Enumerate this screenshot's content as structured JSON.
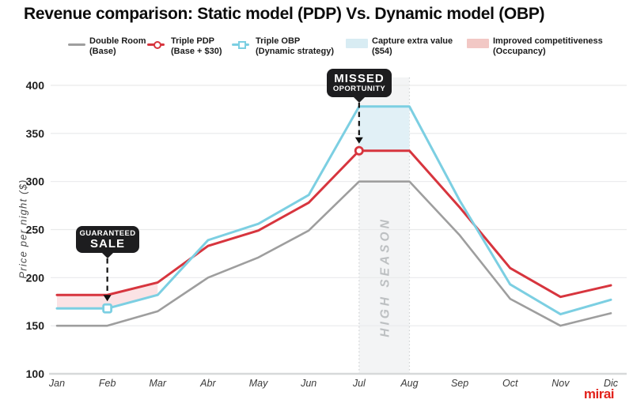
{
  "title": "Revenue comparison: Static model (PDP) Vs. Dynamic model (OBP)",
  "watermark": "mirai",
  "legend": {
    "items": [
      {
        "line1": "Double Room",
        "line2": "(Base)",
        "swatch": "line",
        "color": "#9e9e9e"
      },
      {
        "line1": "Triple PDP",
        "line2": "(Base + $30)",
        "swatch": "line-circle",
        "color": "#d7353e"
      },
      {
        "line1": "Triple OBP",
        "line2": "(Dynamic strategy)",
        "swatch": "line-square",
        "color": "#7ccfe2"
      },
      {
        "line1": "Capture extra value",
        "line2": "($54)",
        "swatch": "rect",
        "color": "#d8ecf3"
      },
      {
        "line1": "Improved competitiveness",
        "line2": "(Occupancy)",
        "swatch": "rect",
        "color": "#f2c8c5"
      }
    ]
  },
  "chart_data": {
    "type": "line",
    "categories": [
      "Jan",
      "Feb",
      "Mar",
      "Abr",
      "May",
      "Jun",
      "Jul",
      "Aug",
      "Sep",
      "Oct",
      "Nov",
      "Dic"
    ],
    "series": [
      {
        "name": "Double Room (Base)",
        "color": "#9e9e9e",
        "width": 2.6,
        "values": [
          150,
          150,
          165,
          200,
          221,
          249,
          300,
          300,
          244,
          178,
          150,
          163
        ]
      },
      {
        "name": "Triple PDP (Base + $30)",
        "color": "#d7353e",
        "width": 3,
        "values": [
          182,
          182,
          195,
          233,
          249,
          278,
          332,
          332,
          273,
          210,
          180,
          192
        ]
      },
      {
        "name": "Triple OBP (Dynamic strategy)",
        "color": "#7ccfe2",
        "width": 3,
        "values": [
          168,
          168,
          182,
          239,
          256,
          286,
          378,
          378,
          280,
          193,
          162,
          177
        ]
      }
    ],
    "title": "Revenue comparison: Static model (PDP) Vs. Dynamic model (OBP)",
    "xlabel": "",
    "ylabel": "Price per night ($)",
    "ylim": [
      100,
      400
    ],
    "ytick_step": 50,
    "grid": true,
    "legend_position": "top",
    "areas": [
      {
        "name": "improved-competitiveness-area",
        "upper_series": 1,
        "lower_series": 2,
        "from": 0,
        "to": 2,
        "color": "#fbe3e5"
      },
      {
        "name": "capture-extra-value-area",
        "upper_series": 2,
        "lower_series": 1,
        "from": 6,
        "to": 7,
        "color": "#e1f0f6"
      }
    ],
    "band": {
      "label": "HIGH SEASON",
      "from": 6,
      "to": 7,
      "color": "#f3f4f5",
      "border_color": "#cfd2d4",
      "label_color": "#bdc0c2"
    },
    "markers": [
      {
        "series": 2,
        "month": 1,
        "shape": "square"
      },
      {
        "series": 1,
        "month": 6,
        "shape": "circle"
      }
    ]
  },
  "annotations": [
    {
      "line1": "GUARANTEED",
      "line2": "SALE",
      "month": 1,
      "series": 2
    },
    {
      "line1": "MISSED",
      "line2": "OPORTUNITY",
      "month": 6,
      "series": 1
    }
  ]
}
